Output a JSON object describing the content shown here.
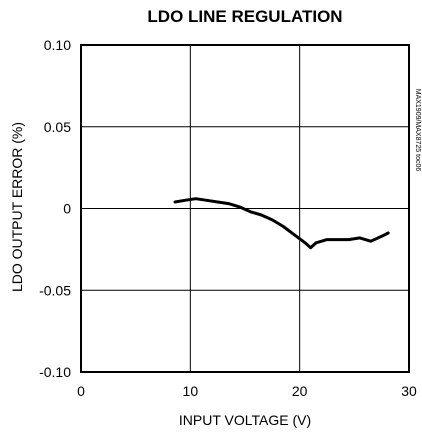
{
  "chart_data": {
    "type": "line",
    "title": "LDO LINE REGULATION",
    "xlabel": "INPUT VOLTAGE (V)",
    "ylabel": "LDO OUTPUT ERROR (%)",
    "xlim": [
      0,
      30
    ],
    "ylim": [
      -0.1,
      0.1
    ],
    "x_ticks": [
      0,
      10,
      20,
      30
    ],
    "x_tick_labels": [
      "0",
      "10",
      "20",
      "30"
    ],
    "y_ticks": [
      0.1,
      0.05,
      0,
      -0.05,
      -0.1
    ],
    "y_tick_labels": [
      "0.10",
      "0.05",
      "0",
      "-0.05",
      "-0.10"
    ],
    "grid": true,
    "side_note": "MAX1909/MAX8725 toc06",
    "series": [
      {
        "x": [
          8.6,
          9.5,
          10.5,
          11.5,
          12.5,
          13.5,
          14.5,
          15.5,
          16.5,
          17.5,
          18.5,
          19.5,
          20.5,
          21,
          21.5,
          22.5,
          23.5,
          24.5,
          25.5,
          26.5,
          27.5,
          28.1
        ],
        "y": [
          0.004,
          0.005,
          0.006,
          0.005,
          0.004,
          0.003,
          0.001,
          -0.002,
          -0.004,
          -0.007,
          -0.011,
          -0.016,
          -0.021,
          -0.024,
          -0.021,
          -0.019,
          -0.019,
          -0.019,
          -0.018,
          -0.02,
          -0.017,
          -0.015
        ]
      }
    ]
  }
}
